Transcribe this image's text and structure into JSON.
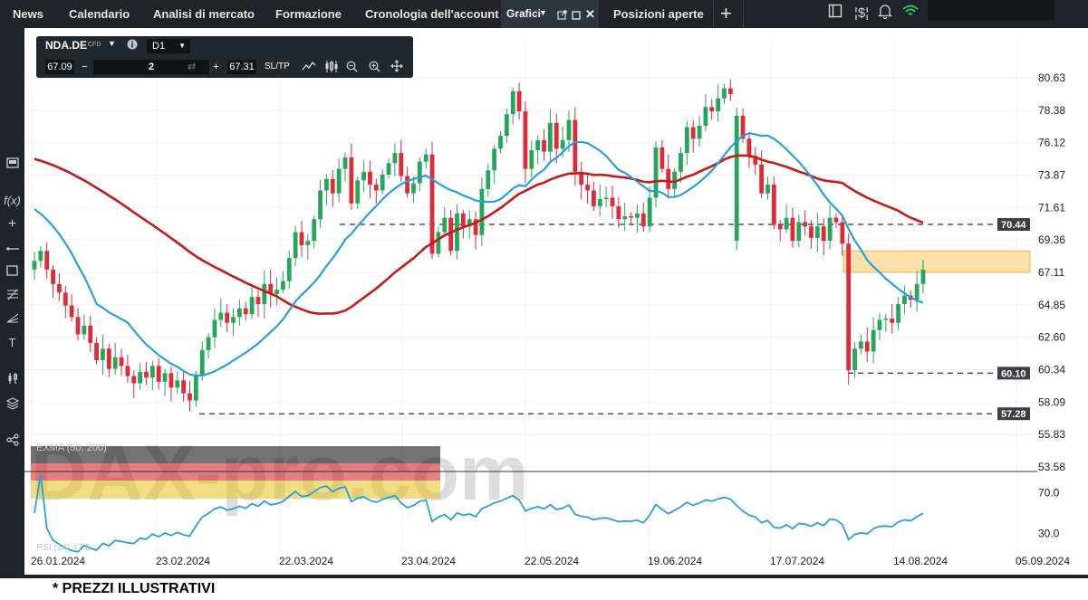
{
  "nav": {
    "tabs": [
      {
        "label": "News"
      },
      {
        "label": "Calendario"
      },
      {
        "label": "Analisi di mercato"
      },
      {
        "label": "Formazione"
      },
      {
        "label": "Cronologia dell'account"
      },
      {
        "label": "Grafici"
      },
      {
        "label": "Posizioni aperte"
      }
    ],
    "add_tab": "+",
    "active_tab": "Grafici",
    "icons": [
      "dropdown-icon",
      "popout-icon",
      "maximize-icon",
      "close-icon",
      "add-tab-icon",
      "panel-icon",
      "money-icon",
      "bell-icon",
      "wifi-icon"
    ]
  },
  "sidebar": {
    "icons": [
      "layout-icon",
      "function-icon",
      "crosshair-icon",
      "line-tool-icon",
      "rectangle-tool-icon",
      "fibonacci-icon",
      "pitchfork-icon",
      "text-tool-icon",
      "indicator-icon",
      "layers-icon",
      "share-icon"
    ],
    "function_label": "f(x)",
    "text_tool_label": "T"
  },
  "toolbox": {
    "symbol": "NDA.DE",
    "instrument_type": "CFD",
    "timeframe": "D1",
    "bid": "67.09",
    "quantity": "2",
    "ask": "67.31",
    "sltp_label": "SL/TP",
    "minus": "−",
    "plus": "+",
    "icons": [
      "chevron-down-icon",
      "info-icon",
      "swap-icon",
      "line-chart-icon",
      "candles-icon",
      "zoom-out-icon",
      "zoom-in-icon",
      "move-icon"
    ]
  },
  "chart_data": {
    "type": "candlestick",
    "symbol": "NDA.DE",
    "timeframe": "D1",
    "price_axis_labels": [
      "80.63",
      "78.38",
      "76.12",
      "73.87",
      "71.61",
      "69.36",
      "67.11",
      "64.85",
      "62.60",
      "60.34",
      "58.09",
      "55.83",
      "53.58"
    ],
    "price_range": [
      53.58,
      80.63
    ],
    "x_axis_labels": [
      "26.01.2024",
      "23.02.2024",
      "22.03.2024",
      "23.04.2024",
      "22.05.2024",
      "19.06.2024",
      "17.07.2024",
      "14.08.2024",
      "05.09.2024"
    ],
    "closes": [
      67.9,
      68.6,
      67.3,
      66.3,
      65.7,
      64.8,
      64.0,
      62.8,
      63.4,
      62.2,
      61.0,
      61.8,
      60.4,
      61.2,
      60.6,
      59.9,
      59.4,
      60.2,
      59.8,
      60.6,
      59.5,
      60.1,
      59.1,
      59.6,
      58.7,
      58.2,
      59.9,
      61.7,
      62.6,
      63.8,
      64.3,
      63.6,
      64.0,
      64.6,
      64.2,
      65.4,
      64.9,
      66.3,
      65.6,
      65.9,
      66.5,
      68.1,
      69.9,
      69.0,
      69.3,
      70.8,
      72.8,
      73.6,
      72.6,
      74.3,
      75.1,
      71.9,
      73.5,
      74.1,
      73.2,
      72.8,
      73.9,
      74.7,
      75.4,
      73.8,
      72.6,
      73.3,
      74.8,
      75.3,
      68.4,
      69.9,
      70.9,
      68.6,
      71.2,
      70.3,
      70.8,
      69.7,
      72.9,
      74.2,
      75.7,
      76.6,
      78.1,
      79.7,
      78.3,
      74.3,
      75.6,
      76.3,
      75.5,
      77.5,
      75.7,
      76.3,
      77.7,
      74.1,
      73.2,
      72.8,
      71.7,
      72.2,
      72.3,
      71.7,
      70.8,
      71.0,
      70.9,
      71.2,
      70.3,
      72.3,
      75.8,
      74.3,
      72.9,
      74.1,
      75.4,
      77.2,
      76.4,
      77.3,
      78.6,
      78.3,
      79.2,
      79.9,
      79.5,
      78.0,
      76.4,
      75.2,
      74.6,
      72.6,
      73.2,
      70.4,
      70.1,
      70.9,
      69.3,
      70.6,
      70.3,
      69.5,
      70.3,
      69.3,
      70.9,
      70.6,
      69.1,
      60.3,
      61.8,
      62.3,
      61.6,
      63.1,
      63.8,
      63.9,
      63.6,
      64.9,
      65.5,
      65.2,
      66.3,
      67.3
    ],
    "opens_first_of_gap": 69.3,
    "ma_red_endpoints": [
      75.0,
      71.6
    ],
    "ma_blue_endpoints": [
      71.5,
      69.9
    ],
    "horizontal_lines": [
      {
        "label": "70.44",
        "value": 70.44
      },
      {
        "label": "60.10",
        "value": 60.1
      },
      {
        "label": "57.28",
        "value": 57.28
      }
    ],
    "zone": {
      "from": 67.11,
      "to": 68.6
    },
    "rsi": {
      "label": "RSI (14) 47.2",
      "axis_labels": [
        "70.0",
        "30.0"
      ],
      "range": [
        10,
        90
      ]
    },
    "ema_label": "EXMA (50, 200)",
    "colors": {
      "up": "#26a65b",
      "down": "#e0293a",
      "ma_long": "#c41a1a",
      "ma_short": "#2a9fe0",
      "rsi": "#2a9fe0",
      "zone": "#fbe0a8"
    }
  },
  "watermark": "DAX-pro.com",
  "disclaimer": "* PREZZI ILLUSTRATIVI"
}
